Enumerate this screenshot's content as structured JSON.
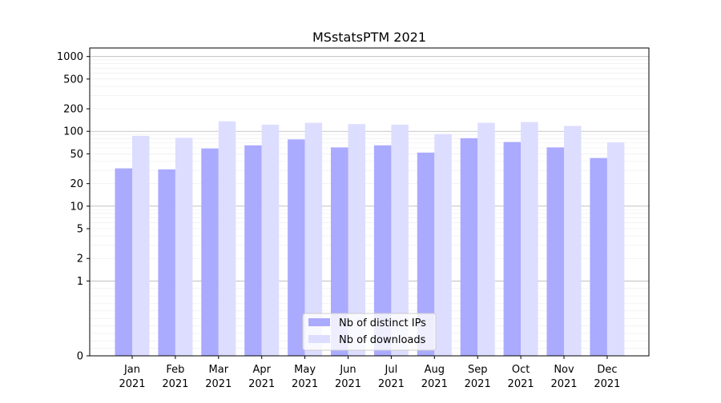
{
  "chart_data": {
    "type": "bar",
    "title": "MSstatsPTM 2021",
    "scale": "symlog",
    "ylim": [
      0,
      1300
    ],
    "grid": true,
    "legend_position": "lower-center",
    "categories": [
      "Jan\n2021",
      "Feb\n2021",
      "Mar\n2021",
      "Apr\n2021",
      "May\n2021",
      "Jun\n2021",
      "Jul\n2021",
      "Aug\n2021",
      "Sep\n2021",
      "Oct\n2021",
      "Nov\n2021",
      "Dec\n2021"
    ],
    "yticks": [
      {
        "value": 0,
        "label": "0"
      },
      {
        "value": 1,
        "label": "1"
      },
      {
        "value": 2,
        "label": "2"
      },
      {
        "value": 5,
        "label": "5"
      },
      {
        "value": 10,
        "label": "10"
      },
      {
        "value": 20,
        "label": "20"
      },
      {
        "value": 50,
        "label": "50"
      },
      {
        "value": 100,
        "label": "100"
      },
      {
        "value": 200,
        "label": "200"
      },
      {
        "value": 500,
        "label": "500"
      },
      {
        "value": 1000,
        "label": "1000"
      }
    ],
    "series": [
      {
        "name": "Nb of distinct IPs",
        "color": "#aaaaff",
        "values": [
          32,
          31,
          59,
          65,
          78,
          61,
          65,
          52,
          81,
          72,
          61,
          44
        ]
      },
      {
        "name": "Nb of downloads",
        "color": "#ddddff",
        "values": [
          87,
          82,
          136,
          123,
          130,
          125,
          123,
          92,
          130,
          133,
          118,
          71
        ]
      }
    ]
  }
}
